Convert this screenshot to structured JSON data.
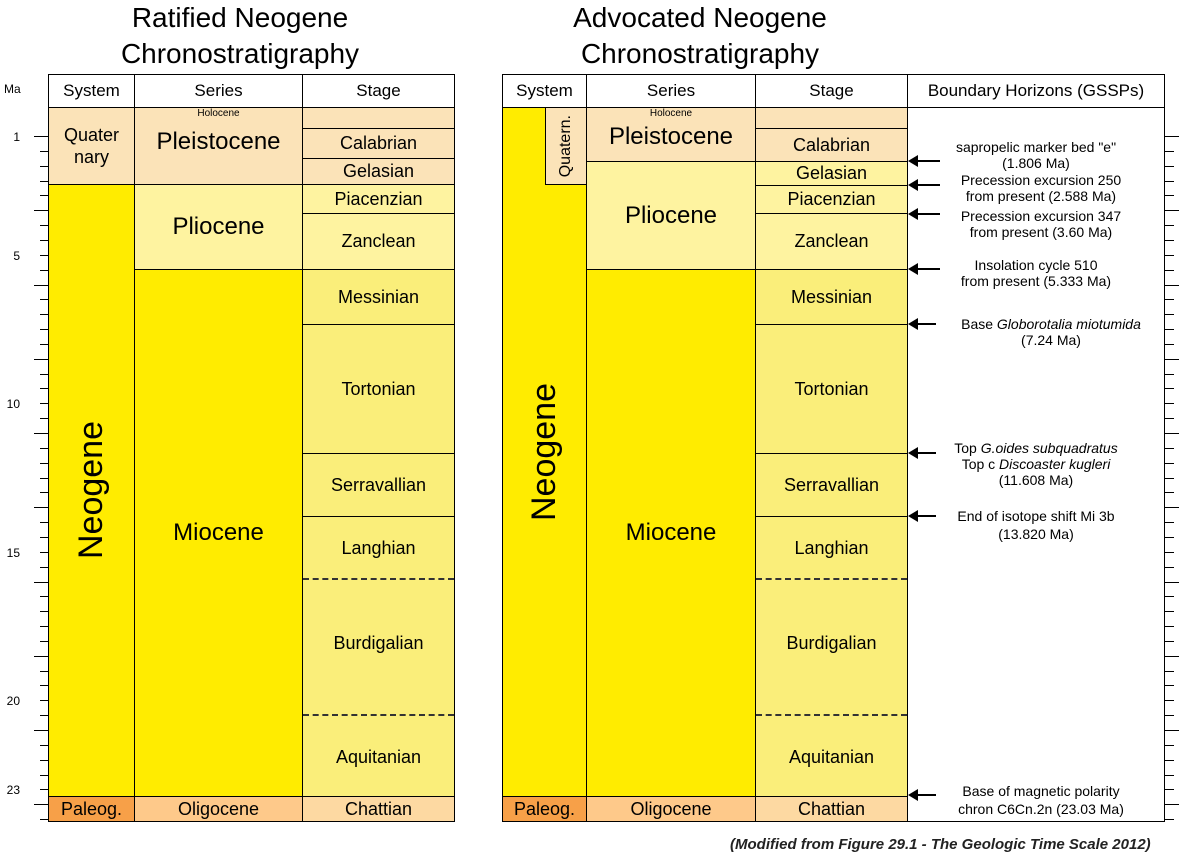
{
  "titles": {
    "left": [
      "Ratified Neogene",
      "Chronostratigraphy"
    ],
    "right": [
      "Advocated Neogene",
      "Chronostratigraphy"
    ]
  },
  "ma_axis": {
    "unit": "Ma",
    "labels": [
      "1",
      "5",
      "10",
      "15",
      "20",
      "23"
    ]
  },
  "headers": {
    "system": "System",
    "series": "Series",
    "stage": "Stage",
    "boundary": "Boundary Horizons (GSSPs)"
  },
  "systems": {
    "quaternary": "Quater nary",
    "quatern": "Quatern.",
    "neogene": "Neogene",
    "paleog": "Paleog."
  },
  "series": {
    "holocene": "Holocene",
    "pleistocene": "Pleistocene",
    "pliocene": "Pliocene",
    "miocene": "Miocene",
    "oligocene": "Oligocene"
  },
  "stages": {
    "calabrian": "Calabrian",
    "gelasian": "Gelasian",
    "piacenzian": "Piacenzian",
    "zanclean": "Zanclean",
    "messinian": "Messinian",
    "tortonian": "Tortonian",
    "serravallian": "Serravallian",
    "langhian": "Langhian",
    "burdigalian": "Burdigalian",
    "aquitanian": "Aquitanian",
    "chattian": "Chattian"
  },
  "horizons": {
    "h1": {
      "l1": "sapropelic marker bed \"e\"",
      "l2": "(1.806 Ma)"
    },
    "h2": {
      "l1": "Precession excursion 250",
      "l2": "from present (2.588 Ma)"
    },
    "h3": {
      "l1": "Precession excursion 347",
      "l2": "from present (3.60 Ma)"
    },
    "h4": {
      "l1": "Insolation cycle 510",
      "l2": "from present (5.333 Ma)"
    },
    "h5": {
      "l1a": "Base ",
      "l1b": "Globorotalia miotumida",
      "l2": "(7.24 Ma)"
    },
    "h6": {
      "l1a": "Top ",
      "l1b": "G.oides subquadratus",
      "l2a": "Top c ",
      "l2b": "Discoaster kugleri",
      "l3": "(11.608 Ma)"
    },
    "h7": {
      "l1": "End of isotope shift Mi 3b",
      "l2": "(13.820 Ma)"
    },
    "h8": {
      "l1": "Base of magnetic polarity",
      "l2": "chron C6Cn.2n (23.03 Ma)"
    }
  },
  "footnote": "(Modified from Figure 29.1 - The Geologic Time Scale 2012)",
  "colors": {
    "quaternary": "#fbe3b8",
    "neogene": "#ffec00",
    "pliocene": "#fef3a0",
    "miocene_stage": "#faee7a",
    "paleogene": "#f7a048",
    "oligocene": "#fec98a",
    "chattian": "#fdd9a2"
  }
}
